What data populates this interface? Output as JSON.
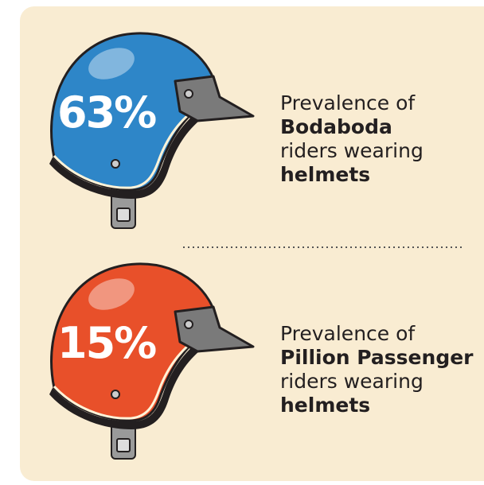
{
  "items": [
    {
      "percent": "63%",
      "color": "#2e86c8",
      "lines": [
        "Prevalence of",
        "Bodaboda",
        "riders wearing",
        "helmets"
      ]
    },
    {
      "percent": "15%",
      "color": "#e8502a",
      "lines": [
        "Prevalence of",
        "Pillion Passenger",
        "riders wearing",
        "helmets"
      ]
    }
  ]
}
